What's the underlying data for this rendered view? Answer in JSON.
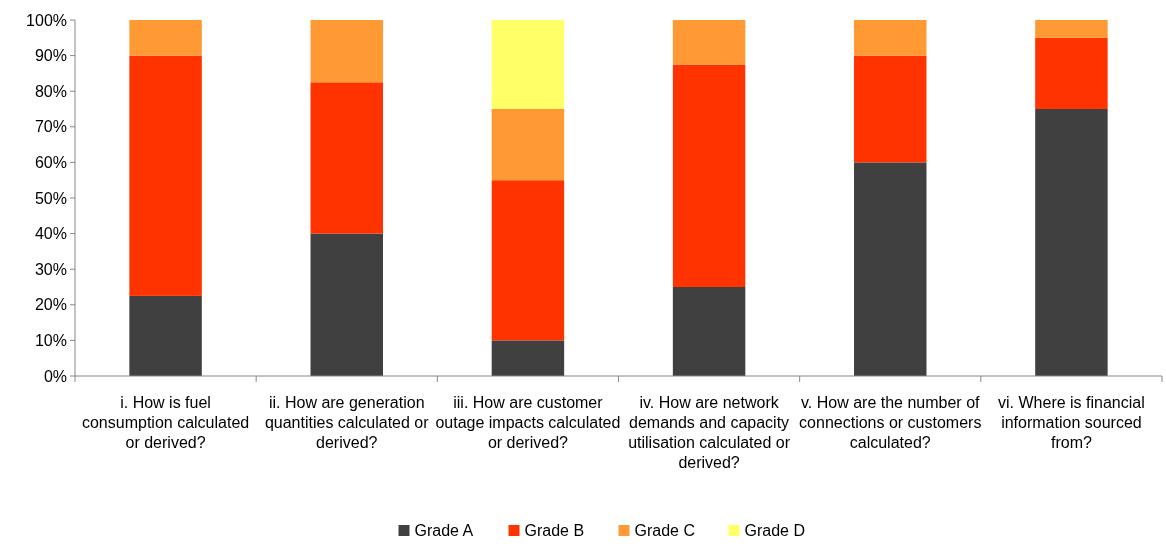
{
  "chart_data": {
    "type": "bar",
    "stacked": true,
    "categories": [
      "i. How is fuel consumption calculated or derived?",
      "ii. How are generation quantities calculated or derived?",
      "iii. How are customer outage impacts calculated or derived?",
      "iv. How are network demands and capacity utilisation calculated or derived?",
      "v. How are the number of connections or customers calculated?",
      "vi. Where is financial information sourced from?"
    ],
    "series": [
      {
        "name": "Grade A",
        "color": "#404040",
        "values": [
          22.5,
          40,
          10,
          25,
          60,
          75
        ]
      },
      {
        "name": "Grade B",
        "color": "#ff3300",
        "values": [
          67.5,
          42.5,
          45,
          62.5,
          30,
          20
        ]
      },
      {
        "name": "Grade C",
        "color": "#ff9933",
        "values": [
          10,
          17.5,
          20,
          12.5,
          10,
          5
        ]
      },
      {
        "name": "Grade D",
        "color": "#ffff66",
        "values": [
          0,
          0,
          25,
          0,
          0,
          0
        ]
      }
    ],
    "ylim": [
      0,
      100
    ],
    "yticks": [
      {
        "value": 0,
        "label": "0%"
      },
      {
        "value": 10,
        "label": "10%"
      },
      {
        "value": 20,
        "label": "20%"
      },
      {
        "value": 30,
        "label": "30%"
      },
      {
        "value": 40,
        "label": "40%"
      },
      {
        "value": 50,
        "label": "50%"
      },
      {
        "value": 60,
        "label": "60%"
      },
      {
        "value": 70,
        "label": "70%"
      },
      {
        "value": 80,
        "label": "80%"
      },
      {
        "value": 90,
        "label": "90%"
      },
      {
        "value": 100,
        "label": "100%"
      }
    ],
    "legend": "bottom"
  }
}
